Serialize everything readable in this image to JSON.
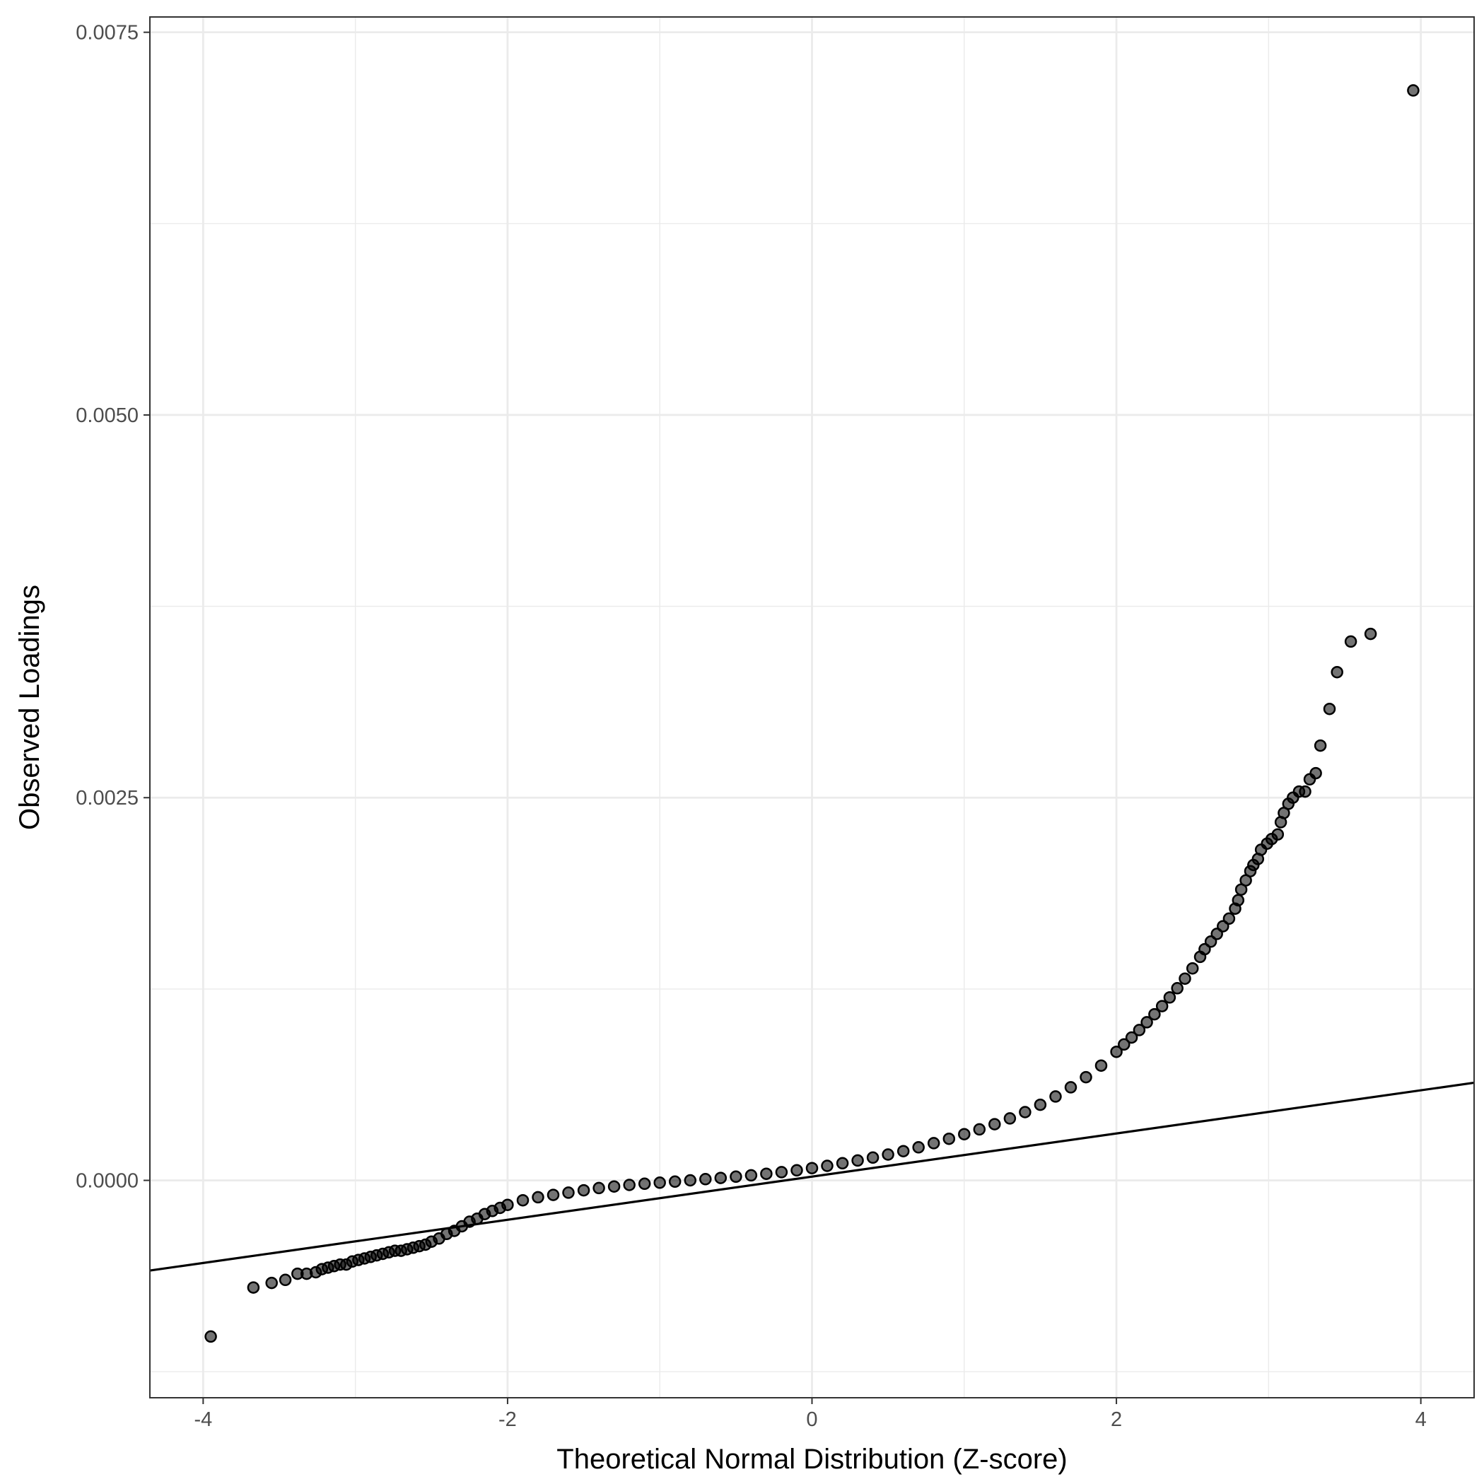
{
  "chart_data": {
    "type": "scatter",
    "subtype": "qq-plot",
    "title": "",
    "xlabel": "Theoretical Normal Distribution (Z-score)",
    "ylabel": "Observed Loadings",
    "xlim": [
      -4.35,
      4.35
    ],
    "ylim": [
      -0.00142,
      0.0076
    ],
    "x_ticks": [
      -4,
      -2,
      0,
      2,
      4
    ],
    "x_tick_labels": [
      "-4",
      "-2",
      "0",
      "2",
      "4"
    ],
    "y_ticks": [
      0.0,
      0.0025,
      0.005,
      0.0075
    ],
    "y_tick_labels": [
      "0.0000",
      "0.0025",
      "0.0050",
      "0.0075"
    ],
    "grid": true,
    "reference_line": {
      "intercept": 2.45e-05,
      "slope": 0.000141
    },
    "point_color": "#000000",
    "point_alpha": 0.55,
    "series": [
      {
        "points": [
          [
            -3.95,
            -0.00102
          ],
          [
            -3.67,
            -0.0007
          ],
          [
            -3.55,
            -0.00067
          ],
          [
            -3.46,
            -0.00065
          ],
          [
            -3.38,
            -0.00061
          ],
          [
            -3.32,
            -0.00061
          ],
          [
            -3.26,
            -0.0006
          ],
          [
            -3.22,
            -0.00058
          ],
          [
            -3.18,
            -0.00057
          ],
          [
            -3.14,
            -0.00056
          ],
          [
            -3.1,
            -0.00055
          ],
          [
            -3.06,
            -0.00055
          ],
          [
            -3.02,
            -0.00053
          ],
          [
            -2.98,
            -0.00052
          ],
          [
            -2.94,
            -0.00051
          ],
          [
            -2.9,
            -0.0005
          ],
          [
            -2.86,
            -0.00049
          ],
          [
            -2.82,
            -0.00048
          ],
          [
            -2.78,
            -0.00047
          ],
          [
            -2.74,
            -0.00046
          ],
          [
            -2.7,
            -0.00046
          ],
          [
            -2.66,
            -0.00045
          ],
          [
            -2.62,
            -0.00044
          ],
          [
            -2.58,
            -0.00043
          ],
          [
            -2.54,
            -0.00042
          ],
          [
            -2.5,
            -0.0004
          ],
          [
            -2.45,
            -0.00038
          ],
          [
            -2.4,
            -0.00035
          ],
          [
            -2.35,
            -0.00033
          ],
          [
            -2.3,
            -0.0003
          ],
          [
            -2.25,
            -0.00027
          ],
          [
            -2.2,
            -0.00025
          ],
          [
            -2.15,
            -0.00022
          ],
          [
            -2.1,
            -0.0002
          ],
          [
            -2.05,
            -0.00018
          ],
          [
            -2.0,
            -0.00016
          ],
          [
            -1.9,
            -0.00013
          ],
          [
            -1.8,
            -0.00011
          ],
          [
            -1.7,
            -9.5e-05
          ],
          [
            -1.6,
            -8e-05
          ],
          [
            -1.5,
            -6.5e-05
          ],
          [
            -1.4,
            -5e-05
          ],
          [
            -1.3,
            -4e-05
          ],
          [
            -1.2,
            -3e-05
          ],
          [
            -1.1,
            -2.2e-05
          ],
          [
            -1.0,
            -1.5e-05
          ],
          [
            -0.9,
            -8e-06
          ],
          [
            -0.8,
            0.0
          ],
          [
            -0.7,
            8e-06
          ],
          [
            -0.6,
            1.6e-05
          ],
          [
            -0.5,
            2.4e-05
          ],
          [
            -0.4,
            3.3e-05
          ],
          [
            -0.3,
            4.3e-05
          ],
          [
            -0.2,
            5.4e-05
          ],
          [
            -0.1,
            6.6e-05
          ],
          [
            0.0,
            8e-05
          ],
          [
            0.1,
            9.5e-05
          ],
          [
            0.2,
            0.000112
          ],
          [
            0.3,
            0.00013
          ],
          [
            0.4,
            0.000149
          ],
          [
            0.5,
            0.000169
          ],
          [
            0.6,
            0.000191
          ],
          [
            0.7,
            0.000216
          ],
          [
            0.8,
            0.000243
          ],
          [
            0.9,
            0.000272
          ],
          [
            1.0,
            0.000302
          ],
          [
            1.1,
            0.000333
          ],
          [
            1.2,
            0.000367
          ],
          [
            1.3,
            0.000405
          ],
          [
            1.4,
            0.000446
          ],
          [
            1.5,
            0.000494
          ],
          [
            1.6,
            0.000548
          ],
          [
            1.7,
            0.000608
          ],
          [
            1.8,
            0.000674
          ],
          [
            1.9,
            0.00075
          ],
          [
            2.0,
            0.00084
          ],
          [
            2.05,
            0.000888
          ],
          [
            2.1,
            0.000933
          ],
          [
            2.15,
            0.000982
          ],
          [
            2.2,
            0.001033
          ],
          [
            2.25,
            0.001085
          ],
          [
            2.3,
            0.001138
          ],
          [
            2.35,
            0.001195
          ],
          [
            2.4,
            0.001255
          ],
          [
            2.45,
            0.001318
          ],
          [
            2.5,
            0.001385
          ],
          [
            2.55,
            0.00146
          ],
          [
            2.58,
            0.00151
          ],
          [
            2.62,
            0.00156
          ],
          [
            2.66,
            0.00161
          ],
          [
            2.7,
            0.00166
          ],
          [
            2.74,
            0.00171
          ],
          [
            2.78,
            0.001775
          ],
          [
            2.8,
            0.00183
          ],
          [
            2.82,
            0.0019
          ],
          [
            2.85,
            0.00196
          ],
          [
            2.88,
            0.00202
          ],
          [
            2.9,
            0.00206
          ],
          [
            2.93,
            0.0021
          ],
          [
            2.95,
            0.00216
          ],
          [
            2.99,
            0.0022
          ],
          [
            3.02,
            0.00223
          ],
          [
            3.06,
            0.00226
          ],
          [
            3.08,
            0.00234
          ],
          [
            3.1,
            0.0024
          ],
          [
            3.13,
            0.00246
          ],
          [
            3.16,
            0.0025
          ],
          [
            3.2,
            0.00254
          ],
          [
            3.24,
            0.00254
          ],
          [
            3.27,
            0.00262
          ],
          [
            3.31,
            0.00266
          ],
          [
            3.34,
            0.00284
          ],
          [
            3.4,
            0.00308
          ],
          [
            3.45,
            0.00332
          ],
          [
            3.54,
            0.00352
          ],
          [
            3.67,
            0.00357
          ],
          [
            3.95,
            0.00712
          ]
        ]
      }
    ]
  }
}
